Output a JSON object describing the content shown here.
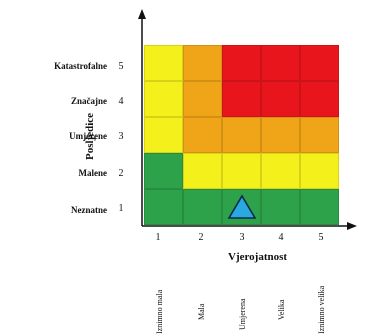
{
  "page_title": "",
  "severity_axis": {
    "title": "Posljedice",
    "levels": [
      {
        "number": "5",
        "label": "Katastrofalne"
      },
      {
        "number": "4",
        "label": "Značajne"
      },
      {
        "number": "3",
        "label": "Umjerene"
      },
      {
        "number": "2",
        "label": "Malene"
      },
      {
        "number": "1",
        "label": "Neznatne"
      }
    ]
  },
  "probability_axis": {
    "title": "Vjerojatnost",
    "levels": [
      {
        "number": "1",
        "label": "Iznimno mala"
      },
      {
        "number": "2",
        "label": "Mala"
      },
      {
        "number": "3",
        "label": "Umjerena"
      },
      {
        "number": "4",
        "label": "Velika"
      },
      {
        "number": "5",
        "label": "Iznimno velika"
      }
    ]
  },
  "grid": {
    "rows": [
      [
        "yellow",
        "orange",
        "red",
        "red",
        "red"
      ],
      [
        "yellow",
        "orange",
        "red",
        "red",
        "red"
      ],
      [
        "yellow",
        "orange",
        "orange",
        "orange",
        "orange"
      ],
      [
        "green",
        "yellow",
        "yellow",
        "yellow",
        "yellow"
      ],
      [
        "green",
        "green",
        "green",
        "green",
        "green"
      ]
    ]
  },
  "colors": {
    "green": "#2ea14b",
    "yellow": "#f4f01c",
    "orange": "#f0a418",
    "red": "#e8161c",
    "marker": "#29a9e0"
  },
  "marker": {
    "icon": "triangle-marker-icon",
    "probability": 3,
    "severity": 1
  }
}
